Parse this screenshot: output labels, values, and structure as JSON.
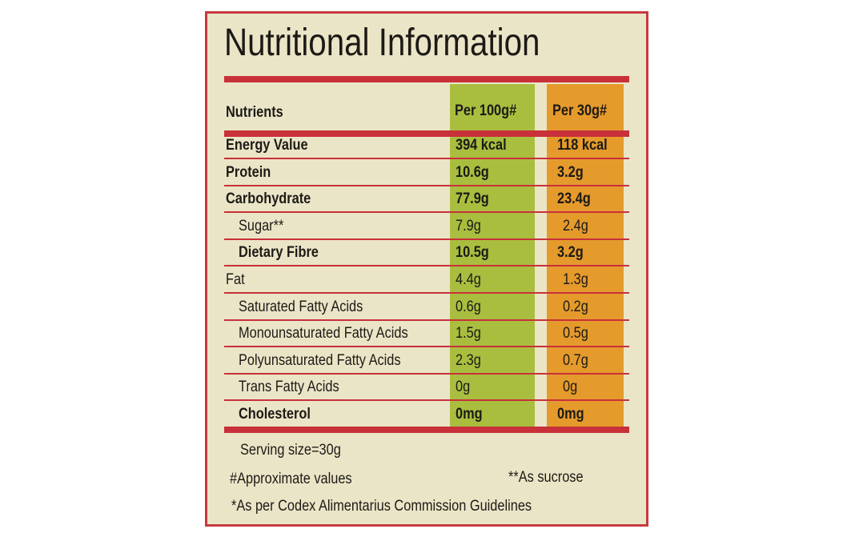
{
  "title": "Nutritional Information",
  "table": {
    "header": [
      "Nutrients",
      "Per 100g#",
      "Per 30g#"
    ],
    "rows": [
      [
        "Energy Value",
        "394 kcal",
        "118 kcal"
      ],
      [
        "Protein",
        "10.6g",
        "3.2g"
      ],
      [
        "Carbohydrate",
        "77.9g",
        "23.4g"
      ],
      [
        "Sugar**",
        "7.9g",
        "2.4g"
      ],
      [
        "Dietary Fibre",
        "10.5g",
        "3.2g"
      ],
      [
        "Fat",
        "4.4g",
        "1.3g"
      ],
      [
        "Saturated Fatty Acids",
        "0.6g",
        "0.2g"
      ],
      [
        "Monounsaturated Fatty Acids",
        "1.5g",
        "0.5g"
      ],
      [
        "Polyunsaturated Fatty Acids",
        "2.3g",
        "0.7g"
      ],
      [
        "Trans Fatty Acids",
        "0g",
        "0g"
      ],
      [
        "Cholesterol",
        "0mg",
        "0mg"
      ]
    ]
  },
  "footnotes": {
    "serving": "Serving size=30g",
    "approx": "#Approximate values",
    "sucrose": "**As sucrose",
    "codex": "*As per Codex Alimentarius Commission Guidelines"
  }
}
